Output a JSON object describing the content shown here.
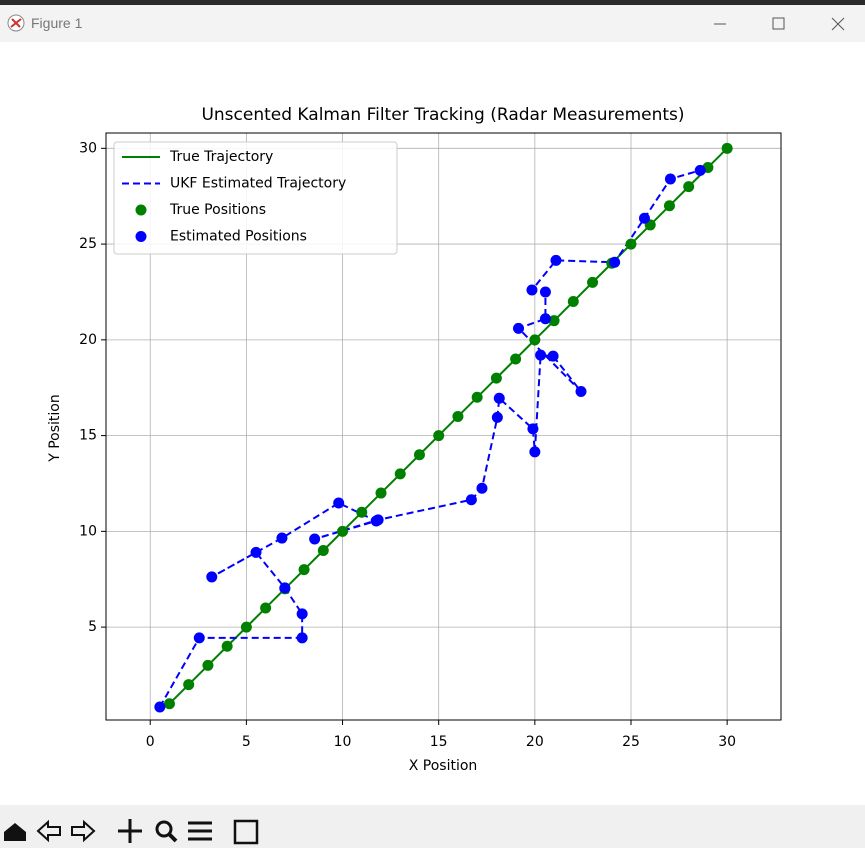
{
  "window_title": "Figure 1",
  "chart_data": {
    "type": "line",
    "title": "Unscented Kalman Filter Tracking (Radar Measurements)",
    "x_label": "X Position",
    "y_label": "Y Position",
    "xlim": [
      -2.3,
      32.8
    ],
    "ylim": [
      0.15,
      30.8
    ],
    "xticks": [
      0,
      5,
      10,
      15,
      20,
      25,
      30
    ],
    "yticks": [
      5,
      10,
      15,
      20,
      25,
      30
    ],
    "grid": true,
    "legend_loc": "upper left",
    "series": [
      {
        "name": "True Trajectory",
        "kind": "line",
        "style": "solid",
        "color": "#008000",
        "x": [
          1,
          2,
          3,
          4,
          5,
          6,
          7,
          8,
          9,
          10,
          11,
          12,
          13,
          14,
          15,
          16,
          17,
          18,
          19,
          20,
          21,
          22,
          23,
          24,
          25,
          26,
          27,
          28,
          29,
          30
        ],
        "values": [
          1,
          2,
          3,
          4,
          5,
          6,
          7,
          8,
          9,
          10,
          11,
          12,
          13,
          14,
          15,
          16,
          17,
          18,
          19,
          20,
          21,
          22,
          23,
          24,
          25,
          26,
          27,
          28,
          29,
          30
        ]
      },
      {
        "name": "UKF Estimated Trajectory",
        "kind": "line",
        "style": "dashed",
        "color": "#0000ff",
        "x": [
          0.5,
          2.55,
          7.9,
          7.9,
          7.0,
          5.5,
          3.2,
          6.85,
          9.8,
          11.75,
          8.55,
          11.85,
          16.7,
          17.25,
          18.05,
          18.15,
          19.9,
          20.0,
          20.3,
          20.95,
          22.4,
          19.15,
          20.55,
          20.55,
          19.85,
          21.1,
          24.15,
          25.7,
          27.05,
          28.6
        ],
        "values": [
          0.83,
          4.44,
          4.44,
          5.69,
          7.05,
          8.9,
          7.62,
          9.65,
          11.48,
          10.54,
          9.6,
          10.6,
          11.65,
          12.25,
          15.95,
          16.95,
          15.35,
          14.15,
          19.2,
          19.15,
          17.3,
          20.6,
          21.1,
          22.5,
          22.6,
          24.15,
          24.05,
          26.35,
          28.4,
          28.85
        ]
      },
      {
        "name": "True Positions",
        "kind": "scatter",
        "color": "#008000",
        "x": [
          1,
          2,
          3,
          4,
          5,
          6,
          7,
          8,
          9,
          10,
          11,
          12,
          13,
          14,
          15,
          16,
          17,
          18,
          19,
          20,
          21,
          22,
          23,
          24,
          25,
          26,
          27,
          28,
          29,
          30
        ],
        "values": [
          1,
          2,
          3,
          4,
          5,
          6,
          7,
          8,
          9,
          10,
          11,
          12,
          13,
          14,
          15,
          16,
          17,
          18,
          19,
          20,
          21,
          22,
          23,
          24,
          25,
          26,
          27,
          28,
          29,
          30
        ]
      },
      {
        "name": "Estimated Positions",
        "kind": "scatter",
        "color": "#0000ff",
        "x": [
          0.5,
          2.55,
          7.9,
          7.9,
          7.0,
          5.5,
          3.2,
          6.85,
          9.8,
          11.75,
          8.55,
          11.85,
          16.7,
          17.25,
          18.05,
          18.15,
          19.9,
          20.0,
          20.3,
          20.95,
          22.4,
          19.15,
          20.55,
          20.55,
          19.85,
          21.1,
          24.15,
          25.7,
          27.05,
          28.6
        ],
        "values": [
          0.83,
          4.44,
          4.44,
          5.69,
          7.05,
          8.9,
          7.62,
          9.65,
          11.48,
          10.54,
          9.6,
          10.6,
          11.65,
          12.25,
          15.95,
          16.95,
          15.35,
          14.15,
          19.2,
          19.15,
          17.3,
          20.6,
          21.1,
          22.5,
          22.6,
          24.15,
          24.05,
          26.35,
          28.4,
          28.85
        ]
      }
    ]
  }
}
